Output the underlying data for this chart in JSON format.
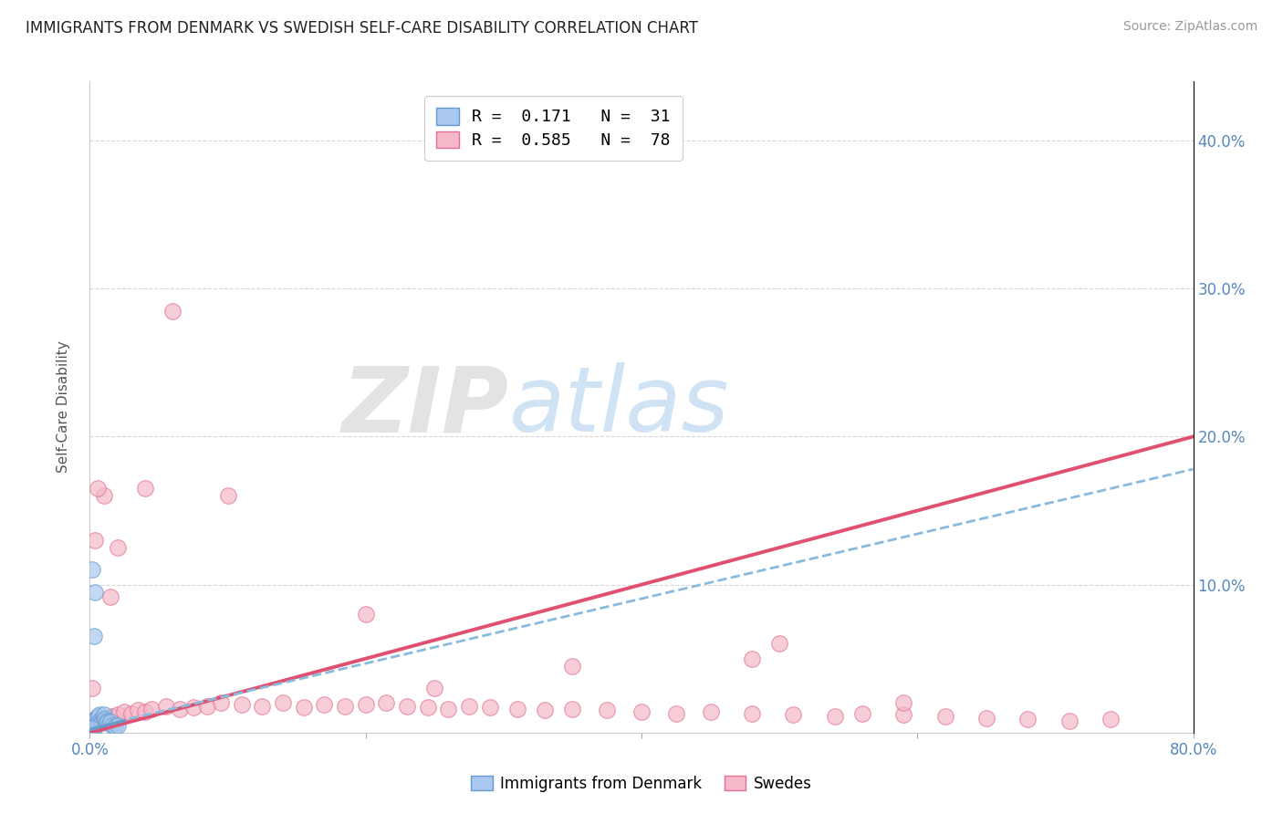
{
  "title": "IMMIGRANTS FROM DENMARK VS SWEDISH SELF-CARE DISABILITY CORRELATION CHART",
  "source": "Source: ZipAtlas.com",
  "ylabel": "Self-Care Disability",
  "watermark_zip": "ZIP",
  "watermark_atlas": "atlas",
  "xlim": [
    0.0,
    0.8
  ],
  "ylim": [
    0.0,
    0.44
  ],
  "legend_r1": "R =  0.171",
  "legend_n1": "N =  31",
  "legend_r2": "R =  0.585",
  "legend_n2": "N =  78",
  "color_blue_fill": "#A8C8F0",
  "color_blue_edge": "#6699CC",
  "color_pink_fill": "#F5B8C8",
  "color_pink_edge": "#E07090",
  "color_pink_line": "#E05070",
  "color_blue_line": "#88BBDD",
  "background": "#FFFFFF",
  "grid_color": "#CCCCCC",
  "title_color": "#222222",
  "axis_color": "#5588BB",
  "ylabel_color": "#555555",
  "blue_x": [
    0.001,
    0.002,
    0.002,
    0.003,
    0.003,
    0.003,
    0.004,
    0.004,
    0.005,
    0.005,
    0.006,
    0.006,
    0.007,
    0.007,
    0.008,
    0.008,
    0.009,
    0.01,
    0.01,
    0.011,
    0.012,
    0.013,
    0.014,
    0.015,
    0.016,
    0.018,
    0.02,
    0.004,
    0.003,
    0.002,
    0.001
  ],
  "blue_y": [
    0.005,
    0.006,
    0.008,
    0.004,
    0.007,
    0.003,
    0.005,
    0.009,
    0.006,
    0.01,
    0.007,
    0.011,
    0.008,
    0.012,
    0.007,
    0.009,
    0.008,
    0.01,
    0.012,
    0.009,
    0.008,
    0.007,
    0.006,
    0.007,
    0.005,
    0.004,
    0.005,
    0.095,
    0.065,
    0.11,
    0.003
  ],
  "pink_x": [
    0.001,
    0.001,
    0.002,
    0.002,
    0.003,
    0.003,
    0.003,
    0.004,
    0.004,
    0.005,
    0.005,
    0.006,
    0.007,
    0.007,
    0.008,
    0.008,
    0.009,
    0.01,
    0.012,
    0.014,
    0.016,
    0.018,
    0.02,
    0.025,
    0.03,
    0.035,
    0.04,
    0.045,
    0.055,
    0.065,
    0.075,
    0.085,
    0.095,
    0.11,
    0.125,
    0.14,
    0.155,
    0.17,
    0.185,
    0.2,
    0.215,
    0.23,
    0.245,
    0.26,
    0.275,
    0.29,
    0.31,
    0.33,
    0.35,
    0.375,
    0.4,
    0.425,
    0.45,
    0.48,
    0.51,
    0.54,
    0.56,
    0.59,
    0.62,
    0.65,
    0.68,
    0.71,
    0.74,
    0.5,
    0.35,
    0.2,
    0.1,
    0.06,
    0.04,
    0.02,
    0.015,
    0.01,
    0.006,
    0.004,
    0.002,
    0.59,
    0.48,
    0.25
  ],
  "pink_y": [
    0.004,
    0.006,
    0.005,
    0.007,
    0.004,
    0.006,
    0.008,
    0.005,
    0.007,
    0.006,
    0.009,
    0.007,
    0.006,
    0.01,
    0.007,
    0.009,
    0.008,
    0.007,
    0.009,
    0.01,
    0.011,
    0.01,
    0.012,
    0.014,
    0.013,
    0.015,
    0.014,
    0.016,
    0.018,
    0.016,
    0.017,
    0.018,
    0.02,
    0.019,
    0.018,
    0.02,
    0.017,
    0.019,
    0.018,
    0.019,
    0.02,
    0.018,
    0.017,
    0.016,
    0.018,
    0.017,
    0.016,
    0.015,
    0.016,
    0.015,
    0.014,
    0.013,
    0.014,
    0.013,
    0.012,
    0.011,
    0.013,
    0.012,
    0.011,
    0.01,
    0.009,
    0.008,
    0.009,
    0.06,
    0.045,
    0.08,
    0.16,
    0.285,
    0.165,
    0.125,
    0.092,
    0.16,
    0.165,
    0.13,
    0.03,
    0.02,
    0.05,
    0.03
  ],
  "pink_line_x0": 0.0,
  "pink_line_y0": 0.0,
  "pink_line_x1": 0.8,
  "pink_line_y1": 0.2,
  "blue_line_x0": 0.0,
  "blue_line_y0": 0.003,
  "blue_line_x1": 0.8,
  "blue_line_y1": 0.178
}
